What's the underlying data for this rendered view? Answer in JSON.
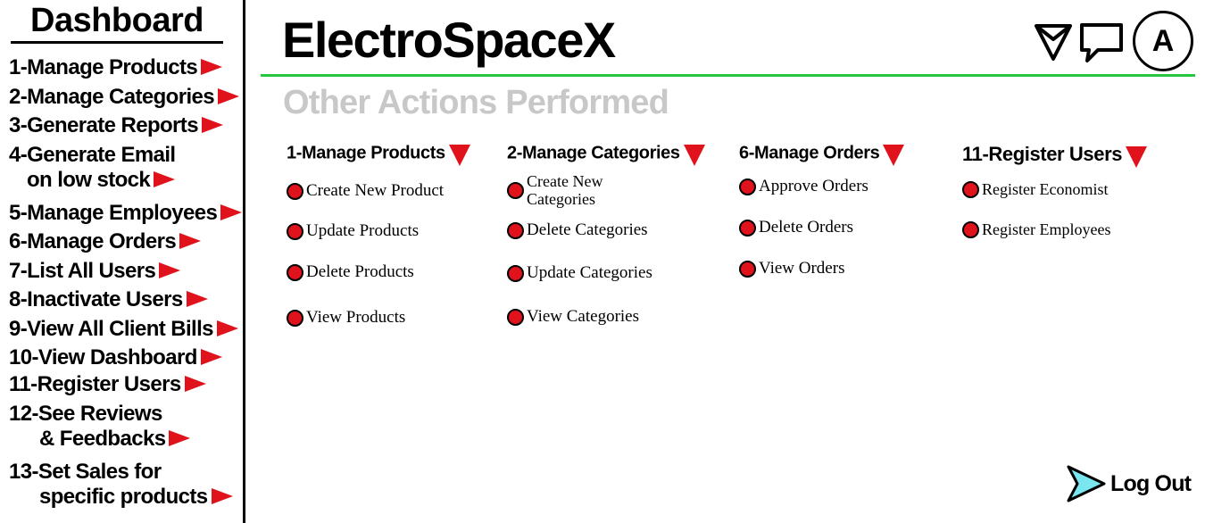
{
  "sidebar": {
    "title": "Dashboard",
    "items": [
      {
        "label": "1-Manage Products"
      },
      {
        "label": "2-Manage Categories"
      },
      {
        "label": "3-Generate Reports"
      },
      {
        "label": "4-Generate Email",
        "label2": "on low stock"
      },
      {
        "label": "5-Manage Employees"
      },
      {
        "label": "6-Manage Orders"
      },
      {
        "label": "7-List All Users"
      },
      {
        "label": "8-Inactivate Users"
      },
      {
        "label": "9-View All Client Bills"
      },
      {
        "label": "10-View Dashboard"
      },
      {
        "label": "11-Register Users"
      },
      {
        "label": "12-See Reviews",
        "label2": "& Feedbacks"
      },
      {
        "label": "13-Set Sales for",
        "label2": "specific products"
      }
    ]
  },
  "header": {
    "brand": "ElectroSpaceX",
    "avatar_letter": "A",
    "icons": [
      "navigation-icon",
      "chat-icon"
    ]
  },
  "main": {
    "section_title": "Other Actions Performed",
    "columns": [
      {
        "title": "1-Manage Products",
        "actions": [
          "Create New Product",
          "Update Products",
          "Delete Products",
          "View Products"
        ]
      },
      {
        "title": "2-Manage Categories",
        "actions": [
          "Create New",
          "Categories",
          "Delete Categories",
          "Update Categories",
          "View Categories"
        ]
      },
      {
        "title": "6-Manage Orders",
        "actions": [
          "Approve Orders",
          "Delete Orders",
          "View Orders"
        ]
      },
      {
        "title": "11-Register Users",
        "actions": [
          "Register Economist",
          "Register Employees"
        ]
      }
    ]
  },
  "logout": {
    "label": "Log Out"
  },
  "colors": {
    "accent_red": "#e0121b",
    "rule_green": "#27c841",
    "muted_title": "#c8c8c8"
  }
}
